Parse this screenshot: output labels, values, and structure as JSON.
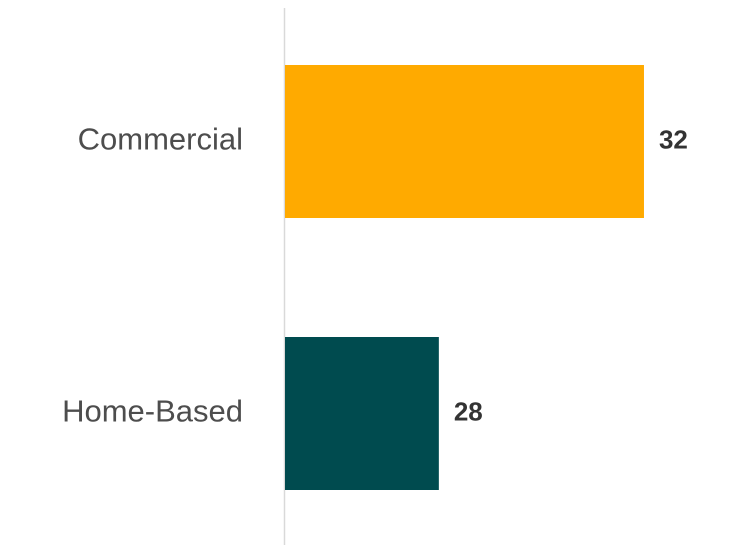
{
  "chart_data": {
    "type": "bar",
    "orientation": "horizontal",
    "categories": [
      "Commercial",
      "Home-Based"
    ],
    "values": [
      32,
      28
    ],
    "value_labels": [
      "32",
      "28"
    ],
    "colors": [
      "#FFAA00",
      "#004B4F"
    ],
    "baseline": 25,
    "xlim": [
      25,
      32.8
    ],
    "title": "",
    "xlabel": "",
    "ylabel": "",
    "grid": false,
    "legend": "none",
    "axis_color": "#d9d9d9"
  }
}
